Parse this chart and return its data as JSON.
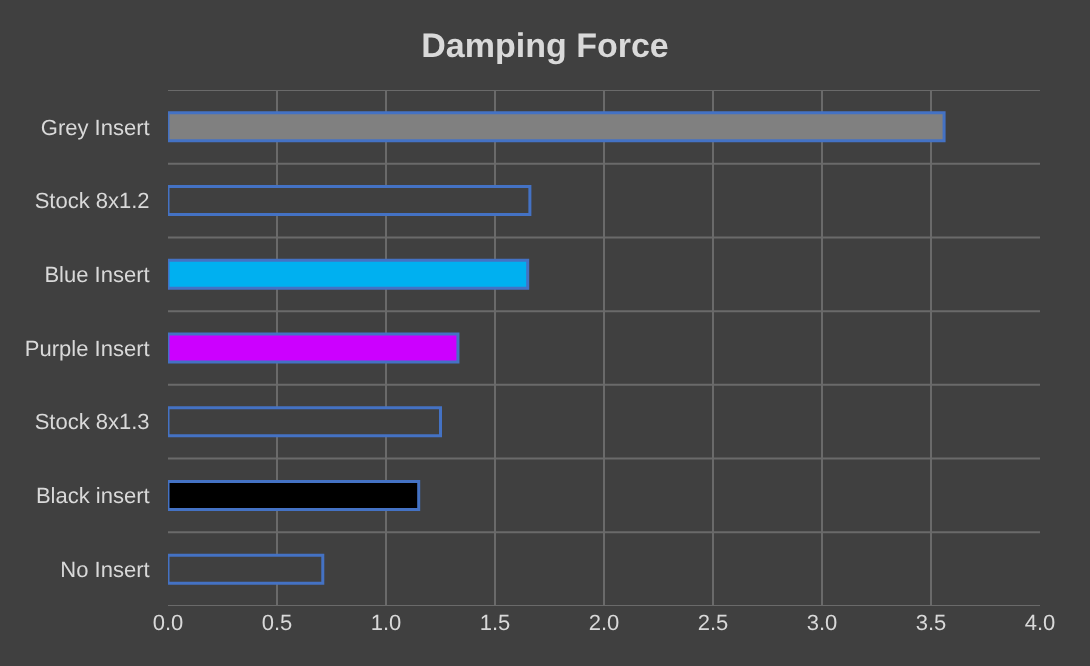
{
  "chart_data": {
    "type": "bar",
    "orientation": "horizontal",
    "title": "Damping Force",
    "categories": [
      "Grey Insert",
      "Stock 8x1.2",
      "Blue Insert",
      "Purple Insert",
      "Stock 8x1.3",
      "Black insert",
      "No Insert"
    ],
    "values": [
      3.56,
      1.66,
      1.65,
      1.33,
      1.25,
      1.15,
      0.71
    ],
    "colors": [
      "#808080",
      "#404040",
      "#00b0f0",
      "#cc00ff",
      "#404040",
      "#000000",
      "#404040"
    ],
    "xlim": [
      0,
      4
    ],
    "xticks": [
      {
        "value": 0,
        "label": "0.0"
      },
      {
        "value": 0.5,
        "label": "0.5"
      },
      {
        "value": 1,
        "label": "1.0"
      },
      {
        "value": 1.5,
        "label": "1.5"
      },
      {
        "value": 2,
        "label": "2.0"
      },
      {
        "value": 2.5,
        "label": "2.5"
      },
      {
        "value": 3,
        "label": "3.0"
      },
      {
        "value": 3.5,
        "label": "3.5"
      },
      {
        "value": 4,
        "label": "4.0"
      }
    ],
    "grid": true
  }
}
